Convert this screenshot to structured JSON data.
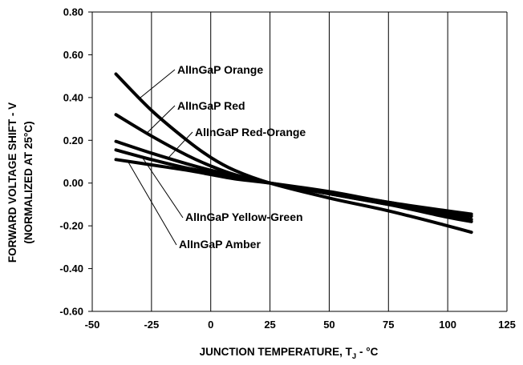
{
  "chart_data": {
    "type": "line",
    "title": "",
    "xlabel": "JUNCTION TEMPERATURE, T",
    "xlabel_subscript": "J",
    "xlabel_suffix": " - °C",
    "ylabel": "FORWARD VOLTAGE SHIFT - V",
    "ylabel_line2": "(NORMALIZED AT 25°C)",
    "xlim": [
      -50,
      125
    ],
    "ylim": [
      -0.6,
      0.8
    ],
    "x_ticks": [
      "-50",
      "-25",
      "0",
      "25",
      "50",
      "75",
      "100",
      "125"
    ],
    "y_ticks": [
      "0.80",
      "0.60",
      "0.40",
      "0.20",
      "0.00",
      "-0.20",
      "-0.40",
      "-0.60"
    ],
    "grid": "vertical",
    "series": [
      {
        "name": "AlInGaP Orange",
        "x": [
          -40,
          -25,
          -10,
          0,
          10,
          25,
          50,
          75,
          100,
          110
        ],
        "y": [
          0.51,
          0.34,
          0.2,
          0.12,
          0.06,
          0.0,
          -0.07,
          -0.13,
          -0.2,
          -0.23
        ]
      },
      {
        "name": "AlInGaP Red",
        "x": [
          -40,
          -25,
          -10,
          0,
          10,
          25,
          50,
          75,
          100,
          110
        ],
        "y": [
          0.32,
          0.22,
          0.13,
          0.08,
          0.04,
          0.0,
          -0.05,
          -0.1,
          -0.16,
          -0.18
        ]
      },
      {
        "name": "AlInGaP Red-Orange",
        "x": [
          -40,
          -25,
          -10,
          0,
          10,
          25,
          50,
          75,
          100,
          110
        ],
        "y": [
          0.195,
          0.14,
          0.09,
          0.06,
          0.035,
          0.0,
          -0.05,
          -0.1,
          -0.15,
          -0.17
        ]
      },
      {
        "name": "AlInGaP Yellow-Green",
        "x": [
          -40,
          -25,
          -10,
          0,
          10,
          25,
          50,
          75,
          100,
          110
        ],
        "y": [
          0.155,
          0.11,
          0.07,
          0.05,
          0.025,
          0.0,
          -0.045,
          -0.09,
          -0.14,
          -0.155
        ]
      },
      {
        "name": "AlInGaP Amber",
        "x": [
          -40,
          -25,
          -10,
          0,
          10,
          25,
          50,
          75,
          100,
          110
        ],
        "y": [
          0.11,
          0.085,
          0.06,
          0.04,
          0.02,
          0.0,
          -0.04,
          -0.09,
          -0.13,
          -0.145
        ]
      }
    ],
    "annotations": [
      {
        "text": "AlInGaP Orange",
        "series": 0
      },
      {
        "text": "AlInGaP Red",
        "series": 1
      },
      {
        "text": "AlInGaP Red-Orange",
        "series": 2
      },
      {
        "text": "AlInGaP Yellow-Green",
        "series": 3
      },
      {
        "text": "AlInGaP Amber",
        "series": 4
      }
    ]
  }
}
